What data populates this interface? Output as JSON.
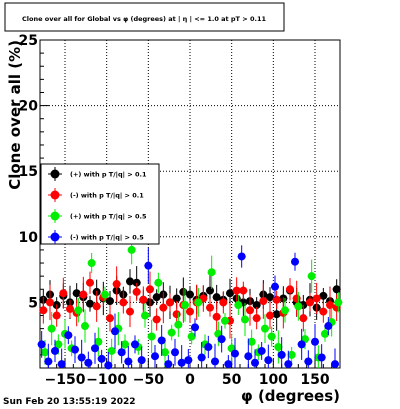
{
  "page": {
    "timestamp": "Sun Feb 20 13:55:19 2022"
  },
  "chart_data": {
    "type": "scatter",
    "title": "Clone  over all for Global vs φ (degrees) at |  η  | <= 1.0 at pT > 0.11",
    "xlabel": "φ (degrees)",
    "ylabel": "Clone  over all (%)",
    "xlim": [
      -180,
      180
    ],
    "ylim": [
      0,
      25
    ],
    "xticks": [
      -150,
      -100,
      -50,
      0,
      50,
      100,
      150
    ],
    "xtick_labels": [
      "−150",
      "−100",
      "−50",
      "0",
      "50",
      "100",
      "150"
    ],
    "yticks": [
      5,
      10,
      15,
      20,
      25
    ],
    "ytick_labels": [
      "5",
      "10",
      "15",
      "20",
      "25"
    ],
    "grid": true,
    "legend_position": "left-middle",
    "series": [
      {
        "name": "(+) with p T/|q| > 0.1",
        "color": "#000000",
        "points": [
          [
            -176,
            5.2
          ],
          [
            -168,
            5.6
          ],
          [
            -160,
            4.8
          ],
          [
            -152,
            5.5
          ],
          [
            -144,
            5.0
          ],
          [
            -136,
            5.7
          ],
          [
            -128,
            5.4
          ],
          [
            -120,
            4.9
          ],
          [
            -112,
            5.8
          ],
          [
            -104,
            5.3
          ],
          [
            -96,
            5.1
          ],
          [
            -88,
            5.9
          ],
          [
            -80,
            5.6
          ],
          [
            -72,
            6.6
          ],
          [
            -64,
            6.5
          ],
          [
            -56,
            5.2
          ],
          [
            -48,
            5.0
          ],
          [
            -40,
            5.4
          ],
          [
            -32,
            5.6
          ],
          [
            -24,
            5.0
          ],
          [
            -16,
            5.3
          ],
          [
            -8,
            5.8
          ],
          [
            0,
            5.6
          ],
          [
            8,
            5.2
          ],
          [
            16,
            5.5
          ],
          [
            24,
            5.9
          ],
          [
            32,
            5.4
          ],
          [
            40,
            5.2
          ],
          [
            48,
            5.7
          ],
          [
            56,
            5.3
          ],
          [
            64,
            5.0
          ],
          [
            72,
            5.1
          ],
          [
            80,
            4.8
          ],
          [
            88,
            5.6
          ],
          [
            96,
            5.4
          ],
          [
            104,
            4.1
          ],
          [
            112,
            5.3
          ],
          [
            120,
            5.9
          ],
          [
            128,
            5.0
          ],
          [
            136,
            4.8
          ],
          [
            144,
            5.2
          ],
          [
            152,
            4.6
          ],
          [
            160,
            5.5
          ],
          [
            168,
            5.1
          ],
          [
            176,
            6.0
          ]
        ]
      },
      {
        "name": "(-) with p T/|q| > 0.1",
        "color": "#ff0000",
        "points": [
          [
            -176,
            4.4
          ],
          [
            -168,
            5.0
          ],
          [
            -160,
            4.0
          ],
          [
            -152,
            5.7
          ],
          [
            -144,
            4.5
          ],
          [
            -136,
            4.2
          ],
          [
            -128,
            5.6
          ],
          [
            -120,
            6.5
          ],
          [
            -112,
            4.7
          ],
          [
            -104,
            5.4
          ],
          [
            -96,
            3.8
          ],
          [
            -88,
            6.4
          ],
          [
            -80,
            5.0
          ],
          [
            -72,
            4.3
          ],
          [
            -64,
            5.8
          ],
          [
            -56,
            5.2
          ],
          [
            -48,
            6.0
          ],
          [
            -40,
            3.7
          ],
          [
            -32,
            4.6
          ],
          [
            -24,
            5.0
          ],
          [
            -16,
            4.1
          ],
          [
            -8,
            4.8
          ],
          [
            0,
            4.3
          ],
          [
            8,
            5.0
          ],
          [
            16,
            5.3
          ],
          [
            24,
            4.6
          ],
          [
            32,
            3.9
          ],
          [
            40,
            5.0
          ],
          [
            48,
            3.6
          ],
          [
            56,
            5.9
          ],
          [
            64,
            5.9
          ],
          [
            72,
            4.4
          ],
          [
            80,
            3.8
          ],
          [
            88,
            5.1
          ],
          [
            96,
            4.0
          ],
          [
            104,
            5.2
          ],
          [
            112,
            4.2
          ],
          [
            120,
            6.0
          ],
          [
            128,
            5.3
          ],
          [
            136,
            3.8
          ],
          [
            144,
            5.0
          ],
          [
            152,
            5.3
          ],
          [
            160,
            4.3
          ],
          [
            168,
            4.8
          ],
          [
            176,
            4.6
          ]
        ]
      },
      {
        "name": "(+) with p T/|q| > 0.5",
        "color": "#00ee00",
        "points": [
          [
            -174,
            1.2
          ],
          [
            -166,
            3.0
          ],
          [
            -158,
            1.8
          ],
          [
            -150,
            2.6
          ],
          [
            -142,
            1.5
          ],
          [
            -134,
            4.4
          ],
          [
            -126,
            3.2
          ],
          [
            -118,
            8.0
          ],
          [
            -110,
            2.0
          ],
          [
            -102,
            5.6
          ],
          [
            -94,
            1.3
          ],
          [
            -86,
            3.0
          ],
          [
            -78,
            1.8
          ],
          [
            -70,
            9.0
          ],
          [
            -62,
            1.6
          ],
          [
            -54,
            4.0
          ],
          [
            -46,
            2.4
          ],
          [
            -38,
            6.5
          ],
          [
            -30,
            1.2
          ],
          [
            -22,
            2.7
          ],
          [
            -14,
            3.3
          ],
          [
            -6,
            4.8
          ],
          [
            2,
            2.4
          ],
          [
            10,
            5.0
          ],
          [
            18,
            1.8
          ],
          [
            26,
            7.3
          ],
          [
            34,
            2.6
          ],
          [
            42,
            3.6
          ],
          [
            50,
            1.5
          ],
          [
            58,
            4.8
          ],
          [
            66,
            3.7
          ],
          [
            74,
            2.0
          ],
          [
            82,
            1.2
          ],
          [
            90,
            3.0
          ],
          [
            98,
            2.4
          ],
          [
            106,
            1.6
          ],
          [
            114,
            4.4
          ],
          [
            122,
            1.0
          ],
          [
            130,
            4.7
          ],
          [
            138,
            2.2
          ],
          [
            146,
            7.0
          ],
          [
            154,
            0.8
          ],
          [
            162,
            2.6
          ],
          [
            170,
            3.5
          ],
          [
            178,
            5.0
          ]
        ]
      },
      {
        "name": "(-) with p T/|q| > 0.5",
        "color": "#0000ff",
        "points": [
          [
            -178,
            1.8
          ],
          [
            -170,
            0.5
          ],
          [
            -162,
            1.3
          ],
          [
            -154,
            0.3
          ],
          [
            -146,
            2.5
          ],
          [
            -138,
            1.4
          ],
          [
            -130,
            0.8
          ],
          [
            -122,
            0.4
          ],
          [
            -114,
            1.5
          ],
          [
            -106,
            0.7
          ],
          [
            -98,
            0.2
          ],
          [
            -90,
            2.8
          ],
          [
            -82,
            1.2
          ],
          [
            -74,
            0.5
          ],
          [
            -66,
            1.8
          ],
          [
            -58,
            0.6
          ],
          [
            -50,
            7.8
          ],
          [
            -42,
            0.9
          ],
          [
            -34,
            2.1
          ],
          [
            -26,
            0.3
          ],
          [
            -18,
            1.2
          ],
          [
            -10,
            0.4
          ],
          [
            -2,
            0.6
          ],
          [
            6,
            3.1
          ],
          [
            14,
            0.8
          ],
          [
            22,
            1.6
          ],
          [
            30,
            0.5
          ],
          [
            38,
            2.2
          ],
          [
            46,
            0.3
          ],
          [
            54,
            1.1
          ],
          [
            62,
            8.5
          ],
          [
            70,
            0.9
          ],
          [
            78,
            0.4
          ],
          [
            86,
            1.3
          ],
          [
            94,
            0.6
          ],
          [
            102,
            6.2
          ],
          [
            110,
            1.0
          ],
          [
            118,
            0.3
          ],
          [
            126,
            8.1
          ],
          [
            134,
            1.8
          ],
          [
            142,
            0.5
          ],
          [
            150,
            2.0
          ],
          [
            158,
            0.8
          ],
          [
            166,
            3.2
          ],
          [
            174,
            0.3
          ]
        ]
      }
    ]
  }
}
